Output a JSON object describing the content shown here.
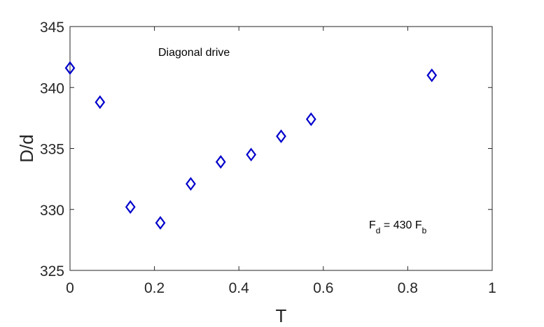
{
  "chart_data": {
    "type": "scatter",
    "title": "",
    "xlabel": "T",
    "ylabel": "D/d",
    "xlim": [
      0,
      1
    ],
    "ylim": [
      325,
      345
    ],
    "xticks": [
      0,
      0.2,
      0.4,
      0.6,
      0.8,
      1
    ],
    "xtick_labels": [
      "0",
      "0.2",
      "0.4",
      "0.6",
      "0.8",
      "1"
    ],
    "yticks": [
      325,
      330,
      335,
      340,
      345
    ],
    "ytick_labels": [
      "325",
      "330",
      "335",
      "340",
      "345"
    ],
    "grid": false,
    "marker": "diamond",
    "marker_color": "#0000cc",
    "series": [
      {
        "x": [
          0.0,
          0.071,
          0.143,
          0.214,
          0.286,
          0.357,
          0.429,
          0.5,
          0.571,
          0.857
        ],
        "y": [
          341.6,
          338.8,
          330.2,
          328.9,
          332.1,
          333.9,
          334.5,
          336.0,
          337.4,
          341.0
        ]
      }
    ],
    "annotations": {
      "drive_label": "Diagonal drive",
      "force_main": "F",
      "force_main_sub": "d",
      "force_mid": " =  430 F",
      "force_end_sub": "b"
    }
  }
}
